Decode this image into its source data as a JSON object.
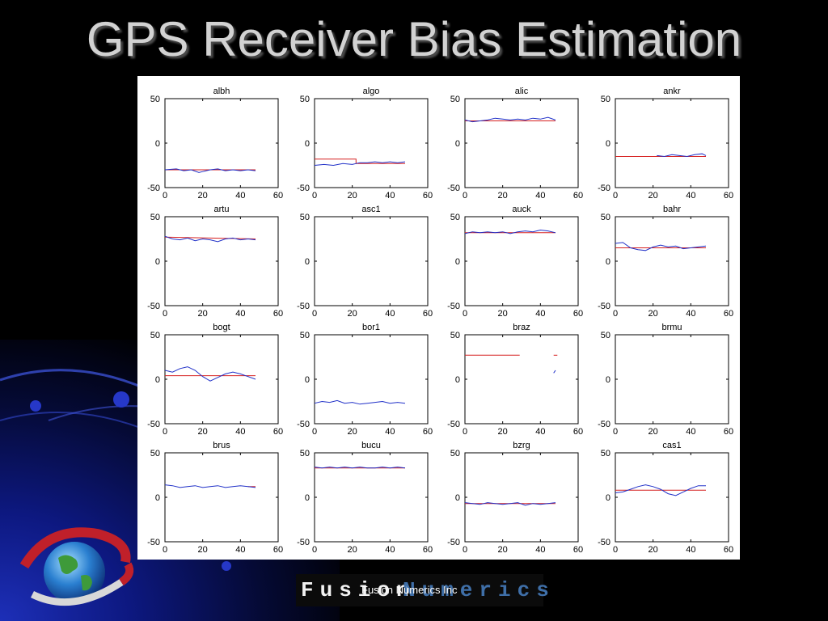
{
  "slide": {
    "title": "GPS Receiver Bias Estimation",
    "footer": "Fusion Numerics Inc",
    "brand": {
      "part1": "Fusion",
      "part2": "Numerics"
    }
  },
  "colors": {
    "title": "#d2d2d2",
    "estimate_line": "#d62020",
    "measured_line": "#2030c8",
    "brand_fusion": "#f2f2f2",
    "brand_numerics": "#3f6fa8"
  },
  "chart_data": [
    {
      "type": "line",
      "title": "albh",
      "xlim": [
        0,
        60
      ],
      "ylim": [
        -50,
        50
      ],
      "xticks": [
        0,
        20,
        40,
        60
      ],
      "yticks": [
        50,
        0,
        -50
      ],
      "series": [
        {
          "color": "#d62020",
          "x": [
            0,
            48
          ],
          "y": [
            -30,
            -30
          ]
        },
        {
          "color": "#2030c8",
          "x": [
            0,
            6,
            10,
            14,
            18,
            20,
            24,
            28,
            32,
            36,
            40,
            44,
            48
          ],
          "y": [
            -30,
            -29,
            -31,
            -30,
            -33,
            -32,
            -30,
            -29,
            -31,
            -30,
            -31,
            -30,
            -31
          ]
        }
      ]
    },
    {
      "type": "line",
      "title": "algo",
      "xlim": [
        0,
        60
      ],
      "ylim": [
        -50,
        50
      ],
      "xticks": [
        0,
        20,
        40,
        60
      ],
      "yticks": [
        50,
        0,
        -50
      ],
      "series": [
        {
          "color": "#d62020",
          "x": [
            0,
            22,
            22,
            48
          ],
          "y": [
            -18,
            -18,
            -23,
            -23
          ]
        },
        {
          "color": "#2030c8",
          "x": [
            0,
            5,
            10,
            15,
            20,
            24,
            28,
            32,
            36,
            40,
            44,
            48
          ],
          "y": [
            -25,
            -24,
            -25,
            -23,
            -24,
            -22,
            -22,
            -21,
            -22,
            -21,
            -22,
            -21
          ]
        }
      ]
    },
    {
      "type": "line",
      "title": "alic",
      "xlim": [
        0,
        60
      ],
      "ylim": [
        -50,
        50
      ],
      "xticks": [
        0,
        20,
        40,
        60
      ],
      "yticks": [
        50,
        0,
        -50
      ],
      "series": [
        {
          "color": "#d62020",
          "x": [
            0,
            48
          ],
          "y": [
            25,
            25
          ]
        },
        {
          "color": "#2030c8",
          "x": [
            0,
            4,
            8,
            12,
            16,
            20,
            24,
            28,
            32,
            36,
            40,
            44,
            48
          ],
          "y": [
            26,
            24,
            25,
            26,
            28,
            27,
            26,
            27,
            26,
            28,
            27,
            29,
            26
          ]
        }
      ]
    },
    {
      "type": "line",
      "title": "ankr",
      "xlim": [
        0,
        60
      ],
      "ylim": [
        -50,
        50
      ],
      "xticks": [
        0,
        20,
        40,
        60
      ],
      "yticks": [
        50,
        0,
        -50
      ],
      "series": [
        {
          "color": "#d62020",
          "x": [
            0,
            48
          ],
          "y": [
            -15,
            -15
          ]
        },
        {
          "color": "#2030c8",
          "x": [
            22,
            26,
            30,
            34,
            38,
            42,
            46,
            48
          ],
          "y": [
            -14,
            -15,
            -13,
            -14,
            -15,
            -13,
            -12,
            -14
          ]
        }
      ]
    },
    {
      "type": "line",
      "title": "artu",
      "xlim": [
        0,
        60
      ],
      "ylim": [
        -50,
        50
      ],
      "xticks": [
        0,
        20,
        40,
        60
      ],
      "yticks": [
        50,
        0,
        -50
      ],
      "series": [
        {
          "color": "#d62020",
          "x": [
            0,
            48
          ],
          "y": [
            27,
            25
          ]
        },
        {
          "color": "#2030c8",
          "x": [
            0,
            4,
            8,
            12,
            16,
            20,
            24,
            28,
            32,
            36,
            40,
            44,
            48
          ],
          "y": [
            28,
            25,
            24,
            26,
            23,
            25,
            24,
            22,
            25,
            26,
            24,
            25,
            24
          ]
        }
      ]
    },
    {
      "type": "line",
      "title": "asc1",
      "xlim": [
        0,
        60
      ],
      "ylim": [
        -50,
        50
      ],
      "xticks": [
        0,
        20,
        40,
        60
      ],
      "yticks": [
        50,
        0,
        -50
      ],
      "series": []
    },
    {
      "type": "line",
      "title": "auck",
      "xlim": [
        0,
        60
      ],
      "ylim": [
        -50,
        50
      ],
      "xticks": [
        0,
        20,
        40,
        60
      ],
      "yticks": [
        50,
        0,
        -50
      ],
      "series": [
        {
          "color": "#d62020",
          "x": [
            0,
            48
          ],
          "y": [
            32,
            32
          ]
        },
        {
          "color": "#2030c8",
          "x": [
            0,
            4,
            8,
            12,
            16,
            20,
            24,
            28,
            32,
            36,
            40,
            44,
            48
          ],
          "y": [
            31,
            33,
            32,
            33,
            32,
            33,
            31,
            33,
            34,
            33,
            35,
            34,
            32
          ]
        }
      ]
    },
    {
      "type": "line",
      "title": "bahr",
      "xlim": [
        0,
        60
      ],
      "ylim": [
        -50,
        50
      ],
      "xticks": [
        0,
        20,
        40,
        60
      ],
      "yticks": [
        50,
        0,
        -50
      ],
      "series": [
        {
          "color": "#d62020",
          "x": [
            0,
            48
          ],
          "y": [
            15,
            15
          ]
        },
        {
          "color": "#2030c8",
          "x": [
            0,
            4,
            8,
            12,
            16,
            20,
            24,
            28,
            32,
            36,
            40,
            44,
            48
          ],
          "y": [
            20,
            21,
            15,
            13,
            12,
            16,
            18,
            16,
            17,
            14,
            15,
            16,
            17
          ]
        }
      ]
    },
    {
      "type": "line",
      "title": "bogt",
      "xlim": [
        0,
        60
      ],
      "ylim": [
        -50,
        50
      ],
      "xticks": [
        0,
        20,
        40,
        60
      ],
      "yticks": [
        50,
        0,
        -50
      ],
      "series": [
        {
          "color": "#d62020",
          "x": [
            0,
            48
          ],
          "y": [
            4,
            4
          ]
        },
        {
          "color": "#2030c8",
          "x": [
            0,
            4,
            8,
            12,
            16,
            20,
            24,
            28,
            32,
            36,
            40,
            44,
            48
          ],
          "y": [
            10,
            8,
            12,
            14,
            10,
            3,
            -2,
            2,
            6,
            8,
            6,
            3,
            0
          ]
        }
      ]
    },
    {
      "type": "line",
      "title": "bor1",
      "xlim": [
        0,
        60
      ],
      "ylim": [
        -50,
        50
      ],
      "xticks": [
        0,
        20,
        40,
        60
      ],
      "yticks": [
        50,
        0,
        -50
      ],
      "series": [
        {
          "color": "#2030c8",
          "x": [
            0,
            4,
            8,
            12,
            16,
            20,
            24,
            28,
            32,
            36,
            40,
            44,
            48
          ],
          "y": [
            -27,
            -25,
            -26,
            -24,
            -27,
            -26,
            -28,
            -27,
            -26,
            -25,
            -27,
            -26,
            -27
          ]
        }
      ]
    },
    {
      "type": "line",
      "title": "braz",
      "xlim": [
        0,
        60
      ],
      "ylim": [
        -50,
        50
      ],
      "xticks": [
        0,
        20,
        40,
        60
      ],
      "yticks": [
        50,
        0,
        -50
      ],
      "series": [
        {
          "color": "#d62020",
          "x": [
            0,
            29
          ],
          "y": [
            27,
            27
          ]
        },
        {
          "color": "#d62020",
          "x": [
            47,
            49
          ],
          "y": [
            27,
            27
          ]
        },
        {
          "color": "#2030c8",
          "x": [
            47,
            48
          ],
          "y": [
            7,
            10
          ]
        }
      ]
    },
    {
      "type": "line",
      "title": "brmu",
      "xlim": [
        0,
        60
      ],
      "ylim": [
        -50,
        50
      ],
      "xticks": [
        0,
        20,
        40,
        60
      ],
      "yticks": [
        50,
        0,
        -50
      ],
      "series": []
    },
    {
      "type": "line",
      "title": "brus",
      "xlim": [
        0,
        60
      ],
      "ylim": [
        -50,
        50
      ],
      "xticks": [
        0,
        20,
        40,
        60
      ],
      "yticks": [
        50,
        0,
        -50
      ],
      "series": [
        {
          "color": "#d62020",
          "x": [
            44,
            48
          ],
          "y": [
            12,
            12
          ]
        },
        {
          "color": "#2030c8",
          "x": [
            0,
            4,
            8,
            12,
            16,
            20,
            24,
            28,
            32,
            36,
            40,
            44,
            48
          ],
          "y": [
            14,
            13,
            11,
            12,
            13,
            11,
            12,
            13,
            11,
            12,
            13,
            12,
            11
          ]
        }
      ]
    },
    {
      "type": "line",
      "title": "bucu",
      "xlim": [
        0,
        60
      ],
      "ylim": [
        -50,
        50
      ],
      "xticks": [
        0,
        20,
        40,
        60
      ],
      "yticks": [
        50,
        0,
        -50
      ],
      "series": [
        {
          "color": "#d62020",
          "x": [
            0,
            48
          ],
          "y": [
            33,
            33
          ]
        },
        {
          "color": "#2030c8",
          "x": [
            0,
            4,
            8,
            12,
            16,
            20,
            24,
            28,
            32,
            36,
            40,
            44,
            48
          ],
          "y": [
            34,
            33,
            34,
            33,
            34,
            33,
            34,
            33,
            33,
            34,
            33,
            34,
            33
          ]
        }
      ]
    },
    {
      "type": "line",
      "title": "bzrg",
      "xlim": [
        0,
        60
      ],
      "ylim": [
        -50,
        50
      ],
      "xticks": [
        0,
        20,
        40,
        60
      ],
      "yticks": [
        50,
        0,
        -50
      ],
      "series": [
        {
          "color": "#d62020",
          "x": [
            0,
            48
          ],
          "y": [
            -7,
            -7
          ]
        },
        {
          "color": "#2030c8",
          "x": [
            0,
            4,
            8,
            12,
            16,
            20,
            24,
            28,
            32,
            36,
            40,
            44,
            48
          ],
          "y": [
            -6,
            -7,
            -8,
            -6,
            -7,
            -8,
            -7,
            -6,
            -9,
            -7,
            -8,
            -7,
            -6
          ]
        }
      ]
    },
    {
      "type": "line",
      "title": "cas1",
      "xlim": [
        0,
        60
      ],
      "ylim": [
        -50,
        50
      ],
      "xticks": [
        0,
        20,
        40,
        60
      ],
      "yticks": [
        50,
        0,
        -50
      ],
      "series": [
        {
          "color": "#d62020",
          "x": [
            0,
            48
          ],
          "y": [
            8,
            8
          ]
        },
        {
          "color": "#2030c8",
          "x": [
            0,
            4,
            8,
            12,
            16,
            20,
            24,
            28,
            32,
            36,
            40,
            44,
            48
          ],
          "y": [
            5,
            6,
            9,
            12,
            14,
            12,
            9,
            4,
            2,
            6,
            10,
            13,
            13
          ]
        }
      ]
    }
  ]
}
